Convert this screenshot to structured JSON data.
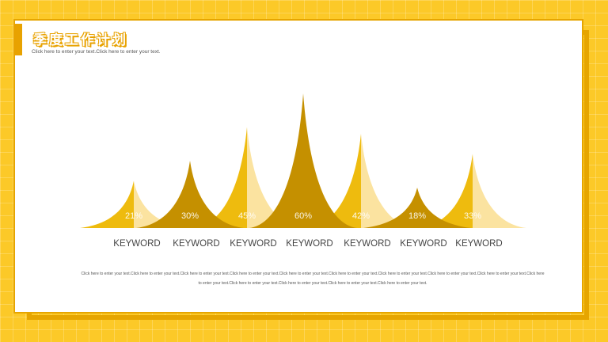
{
  "header": {
    "title": "季度工作计划",
    "subtitle": "Click here to enter your text.Click here to enter your text."
  },
  "footer": {
    "text": "Click here to enter your text.Click here to enter your text.Click here to enter your text.Click here to enter your text.Click here to enter your text.Click here to enter your text.Click here to enter your text.Click here to enter your text.Click here to enter your text.Click here to enter your text.Click here to enter your text.Click here to enter your text.Click here to enter your text.Click here to enter your text."
  },
  "colors": {
    "background": "#fcc928",
    "frame": "#e6a500",
    "gold": "#eebb0e",
    "dark_gold": "#c59000",
    "light_gold": "#fbe3a0"
  },
  "chart_data": {
    "type": "bar",
    "style": "sharp-peak",
    "categories": [
      "KEYWORD",
      "KEYWORD",
      "KEYWORD",
      "KEYWORD",
      "KEYWORD",
      "KEYWORD",
      "KEYWORD"
    ],
    "values": [
      21,
      30,
      45,
      60,
      42,
      18,
      33
    ],
    "value_labels": [
      "21%",
      "30%",
      "45%",
      "60%",
      "42%",
      "18%",
      "33%"
    ],
    "unit": "%",
    "ylim": [
      0,
      60
    ],
    "grid": false,
    "legend": "none"
  }
}
